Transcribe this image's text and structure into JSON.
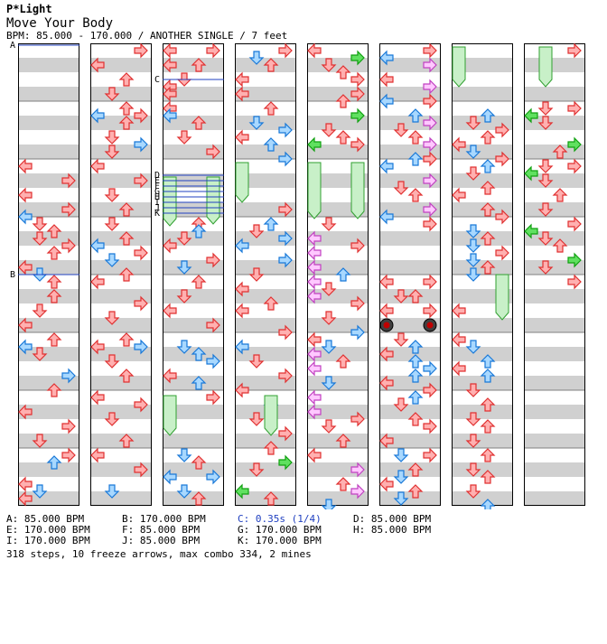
{
  "header": {
    "artist": "P*Light",
    "title": "Move Your Body",
    "bpm_line": "BPM: 85.000 - 170.000 / ANOTHER SINGLE / 7 feet"
  },
  "colors": {
    "red_fill": "#ffb0b0",
    "red_stroke": "#e03030",
    "blue_fill": "#a8d8ff",
    "blue_stroke": "#1878d8",
    "green_fill": "#60e060",
    "green_stroke": "#10a010",
    "pink_fill": "#ffc8ff",
    "pink_stroke": "#c040c0",
    "freeze_fill": "#c8f0c8",
    "freeze_stroke": "#30a030",
    "stripe": "#d0d0d0",
    "marker_line": "#2040c0"
  },
  "markers": [
    "A",
    "B",
    "C",
    "D",
    "E",
    "F",
    "G",
    "H",
    "I",
    "J",
    "K"
  ],
  "legend": [
    {
      "id": "A",
      "text": "A: 85.000 BPM",
      "color": "#000000"
    },
    {
      "id": "B",
      "text": "B: 170.000 BPM",
      "color": "#000000"
    },
    {
      "id": "C",
      "text": "C: 0.35s (1/4)",
      "color": "#2040c0"
    },
    {
      "id": "D",
      "text": "D: 85.000 BPM",
      "color": "#000000"
    },
    {
      "id": "E",
      "text": "E: 170.000 BPM",
      "color": "#000000"
    },
    {
      "id": "F",
      "text": "F: 85.000 BPM",
      "color": "#000000"
    },
    {
      "id": "G",
      "text": "G: 170.000 BPM",
      "color": "#000000"
    },
    {
      "id": "H",
      "text": "H: 85.000 BPM",
      "color": "#000000"
    },
    {
      "id": "I",
      "text": "I: 170.000 BPM",
      "color": "#000000"
    },
    {
      "id": "J",
      "text": "J: 85.000 BPM",
      "color": "#000000"
    },
    {
      "id": "K",
      "text": "K: 170.000 BPM",
      "color": "#000000"
    }
  ],
  "summary": "318 steps, 10 freeze arrows, max combo 334, 2 mines"
}
